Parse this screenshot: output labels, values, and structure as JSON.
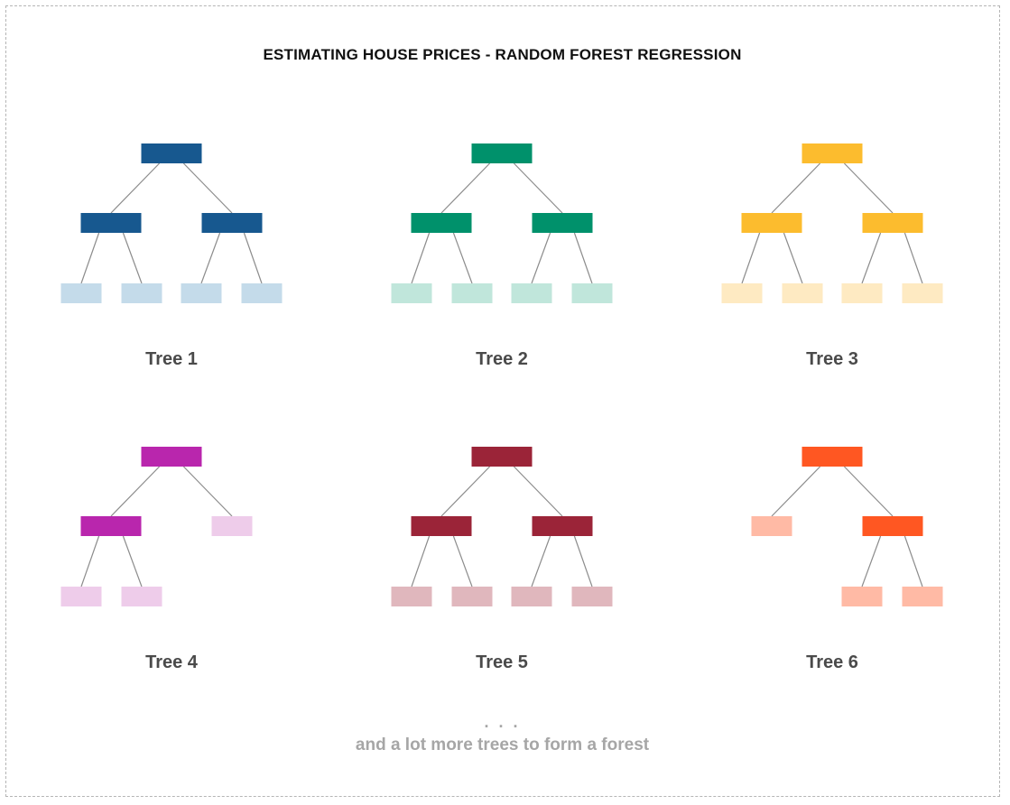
{
  "title": "ESTIMATING HOUSE PRICES - RANDOM FOREST REGRESSION",
  "edge_color": "#8c8c8c",
  "trees": [
    {
      "label": "Tree 1",
      "colors": {
        "internal": "#17588f",
        "leaf": "#c4dbea"
      },
      "structure": {
        "internal": [
          "root",
          "L",
          "R"
        ],
        "leaves": [
          "LL",
          "LR",
          "RL",
          "RR"
        ]
      }
    },
    {
      "label": "Tree 2",
      "colors": {
        "internal": "#00916b",
        "leaf": "#c0e6db"
      },
      "structure": {
        "internal": [
          "root",
          "L",
          "R"
        ],
        "leaves": [
          "LL",
          "LR",
          "RL",
          "RR"
        ]
      }
    },
    {
      "label": "Tree 3",
      "colors": {
        "internal": "#fcbc2e",
        "leaf": "#feeac2"
      },
      "structure": {
        "internal": [
          "root",
          "L",
          "R"
        ],
        "leaves": [
          "LL",
          "LR",
          "RL",
          "RR"
        ]
      }
    },
    {
      "label": "Tree 4",
      "colors": {
        "internal": "#b926ad",
        "leaf": "#eeccea"
      },
      "structure": {
        "internal": [
          "root",
          "L"
        ],
        "leaves": [
          "R",
          "LL",
          "LR"
        ]
      }
    },
    {
      "label": "Tree 5",
      "colors": {
        "internal": "#9b2438",
        "leaf": "#e0b7bd"
      },
      "structure": {
        "internal": [
          "root",
          "L",
          "R"
        ],
        "leaves": [
          "LL",
          "LR",
          "RL",
          "RR"
        ]
      }
    },
    {
      "label": "Tree 6",
      "colors": {
        "internal": "#ff5722",
        "leaf": "#ffbaa5"
      },
      "structure": {
        "internal": [
          "root",
          "R"
        ],
        "leaves": [
          "L",
          "RL",
          "RR"
        ]
      }
    }
  ],
  "ellipsis": ". . .",
  "footnote": "and a lot more trees to form a forest"
}
